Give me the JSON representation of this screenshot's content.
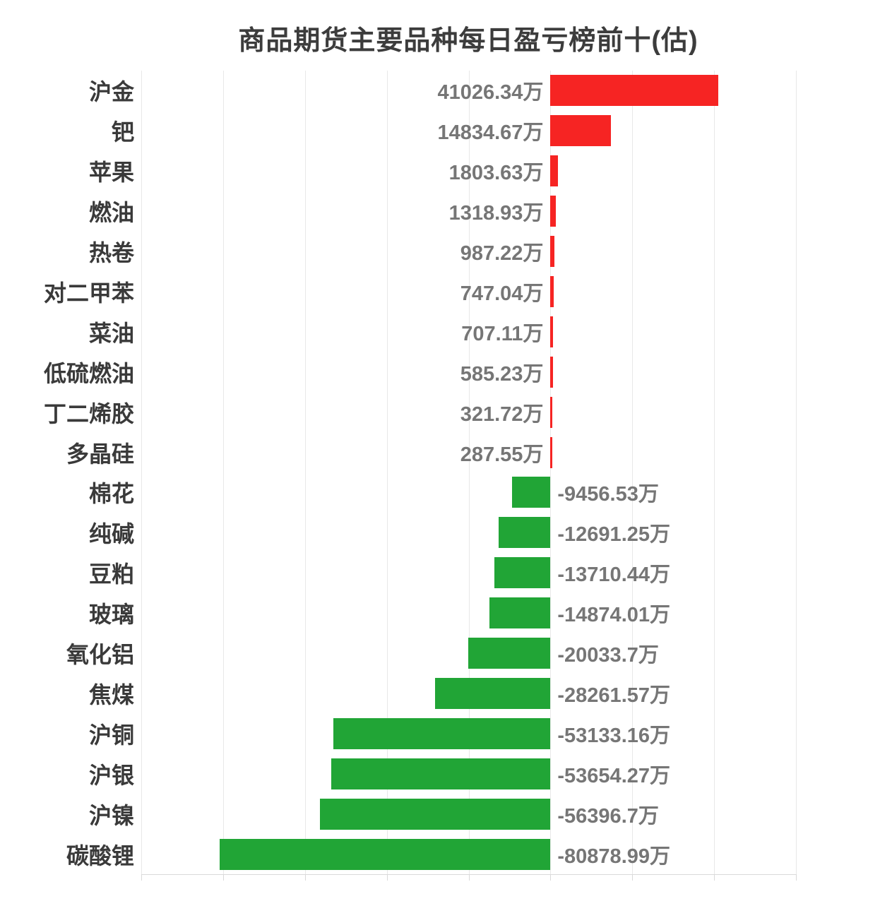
{
  "page_title": "商品期货主要品种每日盈亏榜前十(估)",
  "colors": {
    "positive_bar": "#f62423",
    "negative_bar": "#21a536",
    "category_text": "#3a3a3a",
    "value_text": "#767676",
    "gridline": "#e8e8e8",
    "background": "#ffffff"
  },
  "chart_data": {
    "type": "bar",
    "orientation": "horizontal",
    "title": "商品期货主要品种每日盈亏榜前十(估)",
    "unit": "万",
    "legend": false,
    "grid": true,
    "xlim": [
      -100000,
      80000
    ],
    "grid_step": 20000,
    "categories": [
      "沪金",
      "钯",
      "苹果",
      "燃油",
      "热卷",
      "对二甲苯",
      "菜油",
      "低硫燃油",
      "丁二烯胶",
      "多晶硅",
      "棉花",
      "纯碱",
      "豆粕",
      "玻璃",
      "氧化铝",
      "焦煤",
      "沪铜",
      "沪银",
      "沪镍",
      "碳酸锂"
    ],
    "values": [
      41026.34,
      14834.67,
      1803.63,
      1318.93,
      987.22,
      747.04,
      707.11,
      585.23,
      321.72,
      287.55,
      -9456.53,
      -12691.25,
      -13710.44,
      -14874.01,
      -20033.7,
      -28261.57,
      -53133.16,
      -53654.27,
      -56396.7,
      -80878.99
    ],
    "data_labels": [
      "41026.34万",
      "14834.67万",
      "1803.63万",
      "1318.93万",
      "987.22万",
      "747.04万",
      "707.11万",
      "585.23万",
      "321.72万",
      "287.55万",
      "-9456.53万",
      "-12691.25万",
      "-13710.44万",
      "-14874.01万",
      "-20033.7万",
      "-28261.57万",
      "-53133.16万",
      "-53654.27万",
      "-56396.7万",
      "-80878.99万"
    ]
  }
}
